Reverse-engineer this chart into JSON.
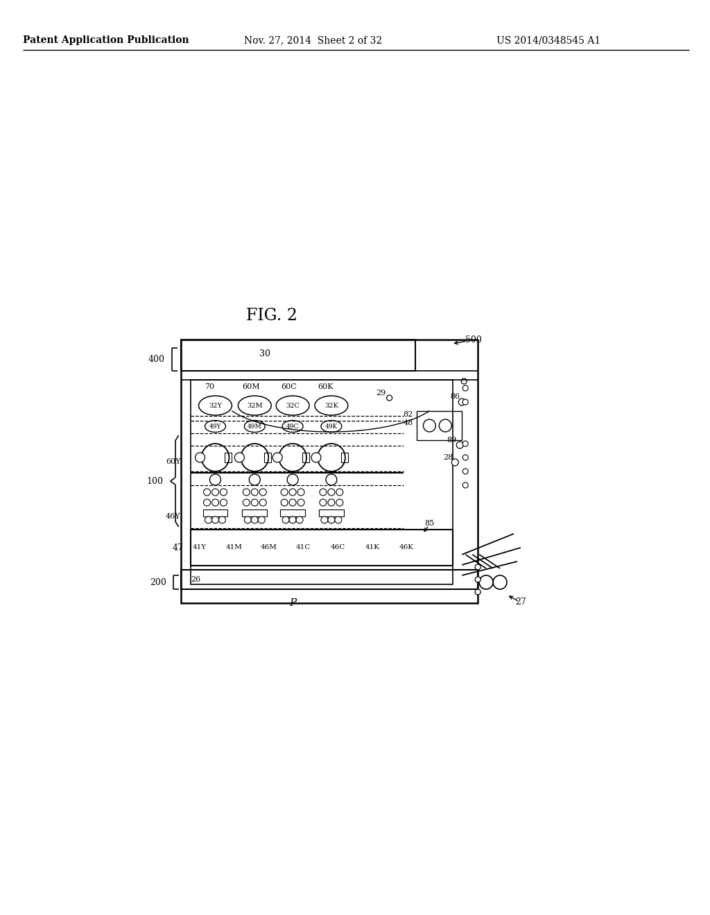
{
  "bg_color": "#ffffff",
  "header_left": "Patent Application Publication",
  "header_center": "Nov. 27, 2014  Sheet 2 of 32",
  "header_right": "US 2014/0348545 A1",
  "fig_label": "FIG. 2"
}
